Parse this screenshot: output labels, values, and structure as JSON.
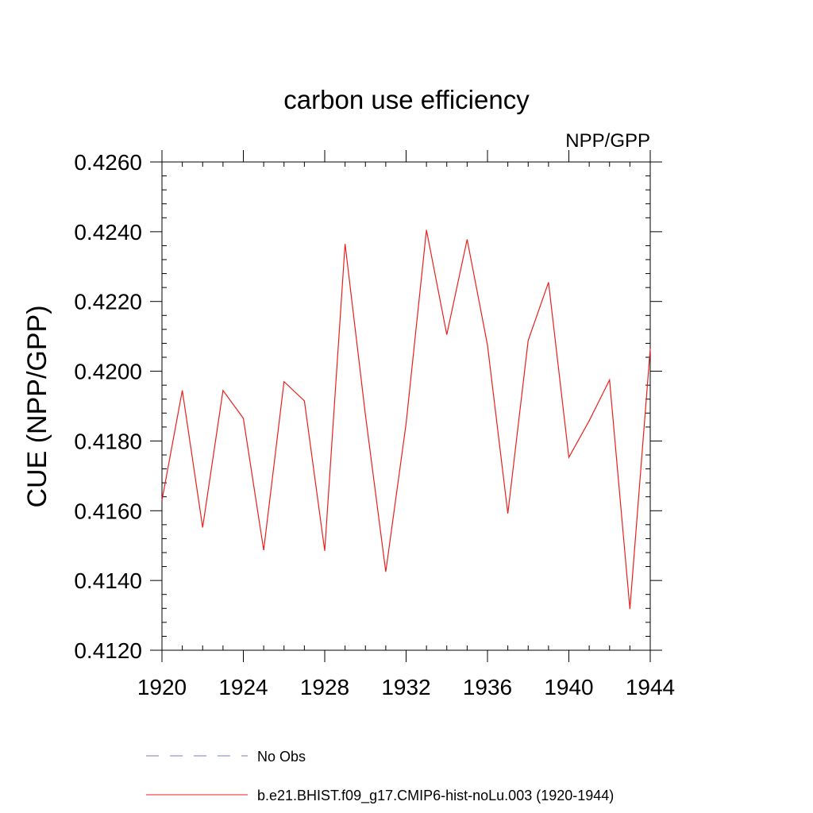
{
  "chart_data": {
    "type": "line",
    "title": "carbon use efficiency",
    "subtitle": "NPP/GPP",
    "xlabel": "",
    "ylabel": "CUE  (NPP/GPP)",
    "xlim": [
      1920,
      1944
    ],
    "ylim": [
      0.412,
      0.426
    ],
    "x_ticks": [
      1920,
      1924,
      1928,
      1932,
      1936,
      1940,
      1944
    ],
    "x_tick_labels": [
      "1920",
      "1924",
      "1928",
      "1932",
      "1936",
      "1940",
      "1944"
    ],
    "y_ticks": [
      0.412,
      0.414,
      0.416,
      0.418,
      0.42,
      0.422,
      0.424,
      0.426
    ],
    "y_tick_labels": [
      "0.4120",
      "0.4140",
      "0.4160",
      "0.4180",
      "0.4200",
      "0.4220",
      "0.4240",
      "0.4260"
    ],
    "grid": false,
    "legend_position": "bottom",
    "series": [
      {
        "name": "No Obs",
        "color": "#7b7bd6",
        "style": "dashed",
        "x": [],
        "values": []
      },
      {
        "name": "b.e21.BHIST.f09_g17.CMIP6-hist-noLu.003 (1920-1944)",
        "color": "#e8201c",
        "style": "solid",
        "x": [
          1920,
          1921,
          1922,
          1923,
          1924,
          1925,
          1926,
          1927,
          1928,
          1929,
          1930,
          1931,
          1932,
          1933,
          1934,
          1935,
          1936,
          1937,
          1938,
          1939,
          1940,
          1941,
          1942,
          1943,
          1944
        ],
        "values": [
          0.4163,
          0.41945,
          0.41552,
          0.41945,
          0.41865,
          0.41487,
          0.4197,
          0.41915,
          0.41485,
          0.42365,
          0.41875,
          0.41425,
          0.4185,
          0.42405,
          0.42105,
          0.42378,
          0.42075,
          0.41592,
          0.42088,
          0.42255,
          0.41753,
          0.41858,
          0.41975,
          0.41318,
          0.42065
        ]
      }
    ]
  }
}
